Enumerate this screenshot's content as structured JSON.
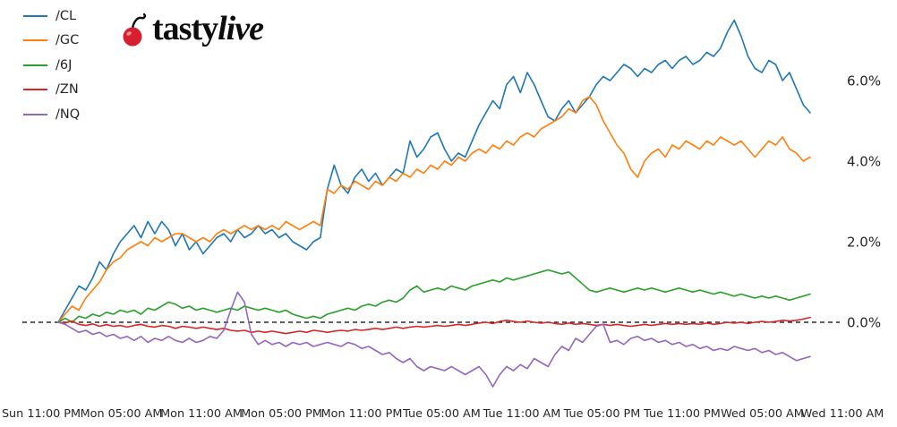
{
  "branding": {
    "logo_regular": "tasty",
    "logo_italic": "live",
    "cherry_color": "#d81f2f"
  },
  "axes": {
    "text_color": "#262626",
    "zero_line_color": "#000000"
  },
  "chart_data": {
    "type": "line",
    "title": "",
    "xlabel": "",
    "ylabel": "",
    "grid": false,
    "legend_position": "upper-left",
    "ylim": [
      -1.8,
      7.8
    ],
    "zero_line": {
      "value": 0.0,
      "style": "dashed"
    },
    "x_tick_labels": [
      "Sun 11:00 PM",
      "Mon 05:00 AM",
      "Mon 11:00 AM",
      "Mon 05:00 PM",
      "Mon 11:00 PM",
      "Tue 05:00 AM",
      "Tue 11:00 AM",
      "Tue 05:00 PM",
      "Tue 11:00 PM",
      "Wed 05:00 AM",
      "Wed 11:00 AM"
    ],
    "y_ticks": {
      "labels": [
        "6.0%",
        "4.0%",
        "2.0%",
        "0.0%"
      ],
      "values": [
        6.0,
        4.0,
        2.0,
        0.0
      ]
    },
    "series": [
      {
        "name": "/CL",
        "color": "#1f77b4",
        "values": [
          0.0,
          0.3,
          0.6,
          0.9,
          0.8,
          1.1,
          1.5,
          1.3,
          1.7,
          2.0,
          2.2,
          2.4,
          2.1,
          2.5,
          2.2,
          2.5,
          2.3,
          1.9,
          2.2,
          1.8,
          2.0,
          1.7,
          1.9,
          2.1,
          2.2,
          2.0,
          2.3,
          2.1,
          2.2,
          2.4,
          2.2,
          2.3,
          2.1,
          2.2,
          2.0,
          1.9,
          1.8,
          2.0,
          2.1,
          3.3,
          3.9,
          3.4,
          3.2,
          3.6,
          3.8,
          3.5,
          3.7,
          3.4,
          3.6,
          3.8,
          3.7,
          4.5,
          4.1,
          4.3,
          4.6,
          4.7,
          4.3,
          4.0,
          4.2,
          4.1,
          4.5,
          4.9,
          5.2,
          5.5,
          5.3,
          5.9,
          6.1,
          5.7,
          6.2,
          5.9,
          5.5,
          5.1,
          5.0,
          5.3,
          5.5,
          5.2,
          5.4,
          5.6,
          5.9,
          6.1,
          6.0,
          6.2,
          6.4,
          6.3,
          6.1,
          6.3,
          6.2,
          6.4,
          6.5,
          6.3,
          6.5,
          6.6,
          6.4,
          6.5,
          6.7,
          6.6,
          6.8,
          7.2,
          7.5,
          7.1,
          6.6,
          6.3,
          6.2,
          6.5,
          6.4,
          6.0,
          6.2,
          5.8,
          5.4,
          5.2
        ]
      },
      {
        "name": "/GC",
        "color": "#ff7f0e",
        "values": [
          0.0,
          0.2,
          0.4,
          0.3,
          0.6,
          0.8,
          1.0,
          1.3,
          1.5,
          1.6,
          1.8,
          1.9,
          2.0,
          1.9,
          2.1,
          2.0,
          2.1,
          2.2,
          2.2,
          2.1,
          2.0,
          2.1,
          2.0,
          2.2,
          2.3,
          2.2,
          2.3,
          2.4,
          2.3,
          2.4,
          2.3,
          2.4,
          2.3,
          2.5,
          2.4,
          2.3,
          2.4,
          2.5,
          2.4,
          3.3,
          3.2,
          3.4,
          3.3,
          3.5,
          3.4,
          3.3,
          3.5,
          3.4,
          3.6,
          3.5,
          3.7,
          3.6,
          3.8,
          3.7,
          3.9,
          3.8,
          4.0,
          3.9,
          4.1,
          4.0,
          4.2,
          4.3,
          4.2,
          4.4,
          4.3,
          4.5,
          4.4,
          4.6,
          4.7,
          4.6,
          4.8,
          4.9,
          5.0,
          5.1,
          5.3,
          5.2,
          5.5,
          5.6,
          5.4,
          5.0,
          4.7,
          4.4,
          4.2,
          3.8,
          3.6,
          4.0,
          4.2,
          4.3,
          4.1,
          4.4,
          4.3,
          4.5,
          4.4,
          4.3,
          4.5,
          4.4,
          4.6,
          4.5,
          4.4,
          4.5,
          4.3,
          4.1,
          4.3,
          4.5,
          4.4,
          4.6,
          4.3,
          4.2,
          4.0,
          4.1
        ]
      },
      {
        "name": "/6J",
        "color": "#2ca02c",
        "values": [
          0.0,
          0.1,
          0.0,
          0.15,
          0.1,
          0.2,
          0.15,
          0.25,
          0.2,
          0.3,
          0.25,
          0.3,
          0.2,
          0.35,
          0.3,
          0.4,
          0.5,
          0.45,
          0.35,
          0.4,
          0.3,
          0.35,
          0.3,
          0.25,
          0.3,
          0.35,
          0.3,
          0.4,
          0.35,
          0.3,
          0.35,
          0.3,
          0.25,
          0.3,
          0.2,
          0.15,
          0.1,
          0.15,
          0.1,
          0.2,
          0.25,
          0.3,
          0.35,
          0.3,
          0.4,
          0.45,
          0.4,
          0.5,
          0.55,
          0.5,
          0.6,
          0.8,
          0.9,
          0.75,
          0.8,
          0.85,
          0.8,
          0.9,
          0.85,
          0.8,
          0.9,
          0.95,
          1.0,
          1.05,
          1.0,
          1.1,
          1.05,
          1.1,
          1.15,
          1.2,
          1.25,
          1.3,
          1.25,
          1.2,
          1.25,
          1.1,
          0.95,
          0.8,
          0.75,
          0.8,
          0.85,
          0.8,
          0.75,
          0.8,
          0.85,
          0.8,
          0.85,
          0.8,
          0.75,
          0.8,
          0.85,
          0.8,
          0.75,
          0.8,
          0.75,
          0.7,
          0.75,
          0.7,
          0.65,
          0.7,
          0.65,
          0.6,
          0.65,
          0.6,
          0.65,
          0.6,
          0.55,
          0.6,
          0.65,
          0.7
        ]
      },
      {
        "name": "/ZN",
        "color": "#d62728",
        "values": [
          0.0,
          -0.02,
          0.03,
          -0.05,
          -0.08,
          -0.04,
          -0.1,
          -0.06,
          -0.1,
          -0.08,
          -0.12,
          -0.08,
          -0.05,
          -0.1,
          -0.12,
          -0.08,
          -0.1,
          -0.15,
          -0.1,
          -0.12,
          -0.15,
          -0.12,
          -0.15,
          -0.18,
          -0.15,
          -0.2,
          -0.22,
          -0.2,
          -0.25,
          -0.22,
          -0.25,
          -0.22,
          -0.25,
          -0.28,
          -0.25,
          -0.22,
          -0.25,
          -0.2,
          -0.22,
          -0.25,
          -0.22,
          -0.2,
          -0.22,
          -0.18,
          -0.2,
          -0.18,
          -0.15,
          -0.18,
          -0.15,
          -0.12,
          -0.15,
          -0.12,
          -0.1,
          -0.12,
          -0.1,
          -0.08,
          -0.1,
          -0.08,
          -0.05,
          -0.08,
          -0.05,
          -0.02,
          0.0,
          -0.03,
          0.02,
          0.05,
          0.02,
          0.0,
          0.03,
          0.0,
          -0.02,
          0.0,
          -0.03,
          -0.05,
          -0.02,
          -0.05,
          -0.03,
          -0.05,
          -0.08,
          -0.05,
          -0.08,
          -0.05,
          -0.08,
          -0.1,
          -0.08,
          -0.05,
          -0.08,
          -0.05,
          -0.03,
          -0.05,
          -0.03,
          -0.05,
          -0.03,
          -0.05,
          -0.02,
          -0.05,
          -0.03,
          0.0,
          -0.02,
          0.0,
          -0.03,
          0.0,
          0.02,
          0.0,
          0.02,
          0.05,
          0.03,
          0.05,
          0.08,
          0.12
        ]
      },
      {
        "name": "/NQ",
        "color": "#9467bd",
        "values": [
          0.0,
          -0.05,
          -0.15,
          -0.25,
          -0.2,
          -0.3,
          -0.25,
          -0.35,
          -0.3,
          -0.4,
          -0.35,
          -0.45,
          -0.35,
          -0.5,
          -0.4,
          -0.45,
          -0.35,
          -0.45,
          -0.5,
          -0.4,
          -0.5,
          -0.45,
          -0.35,
          -0.4,
          -0.2,
          0.3,
          0.75,
          0.5,
          -0.3,
          -0.55,
          -0.45,
          -0.55,
          -0.5,
          -0.6,
          -0.5,
          -0.55,
          -0.5,
          -0.6,
          -0.55,
          -0.5,
          -0.55,
          -0.6,
          -0.5,
          -0.55,
          -0.65,
          -0.6,
          -0.7,
          -0.8,
          -0.75,
          -0.9,
          -1.0,
          -0.9,
          -1.1,
          -1.2,
          -1.1,
          -1.15,
          -1.2,
          -1.1,
          -1.2,
          -1.3,
          -1.2,
          -1.1,
          -1.3,
          -1.6,
          -1.3,
          -1.1,
          -1.2,
          -1.05,
          -1.15,
          -0.9,
          -1.0,
          -1.1,
          -0.8,
          -0.6,
          -0.7,
          -0.4,
          -0.5,
          -0.3,
          -0.1,
          -0.05,
          -0.5,
          -0.45,
          -0.55,
          -0.4,
          -0.35,
          -0.45,
          -0.4,
          -0.5,
          -0.45,
          -0.55,
          -0.5,
          -0.6,
          -0.55,
          -0.65,
          -0.6,
          -0.7,
          -0.65,
          -0.7,
          -0.6,
          -0.65,
          -0.7,
          -0.65,
          -0.75,
          -0.7,
          -0.8,
          -0.75,
          -0.85,
          -0.95,
          -0.9,
          -0.85
        ]
      }
    ]
  }
}
